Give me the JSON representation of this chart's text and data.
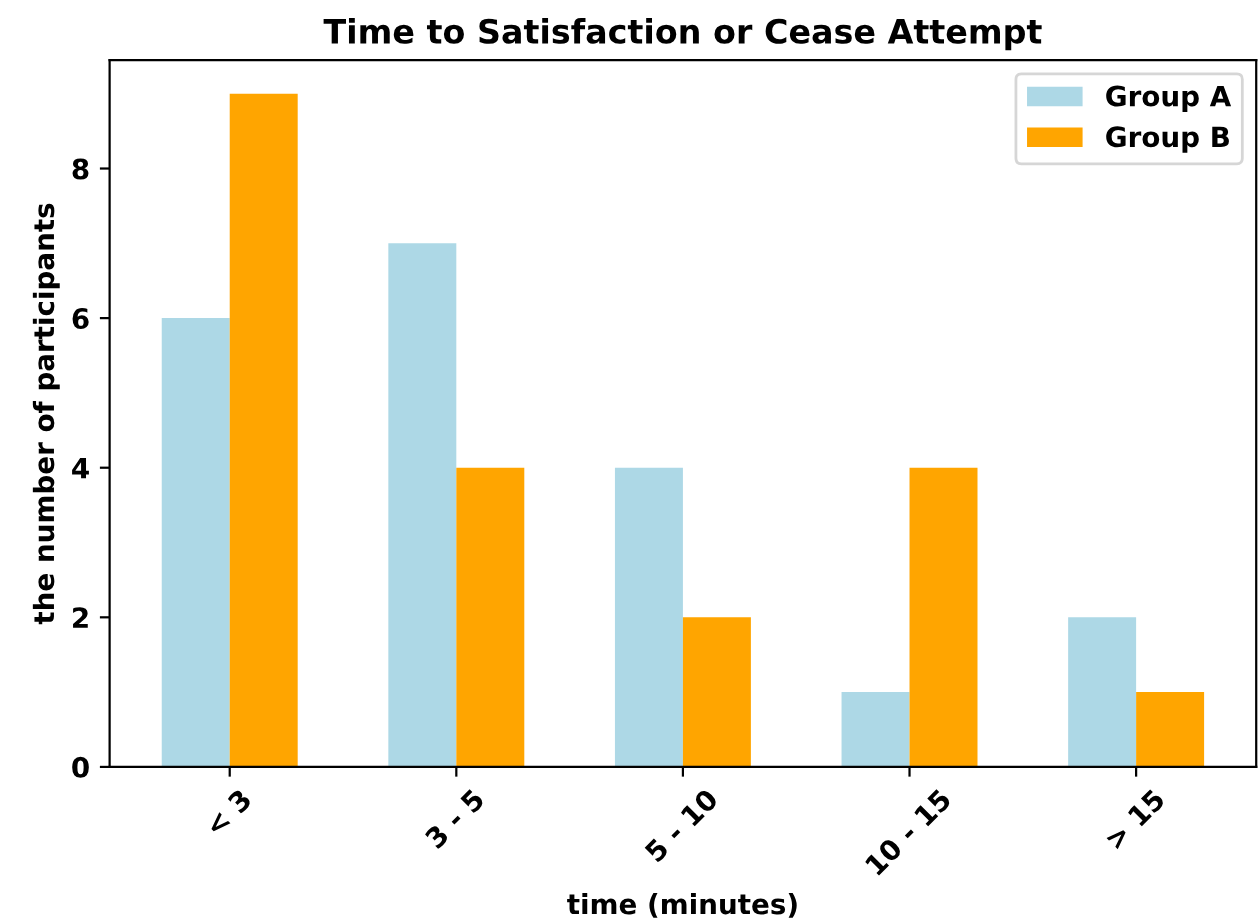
{
  "chart_data": {
    "type": "bar",
    "title": "Time to Satisfaction or Cease Attempt",
    "xlabel": "time (minutes)",
    "ylabel": "the number of participants",
    "categories": [
      "< 3",
      "3 - 5",
      "5 - 10",
      "10 - 15",
      "> 15"
    ],
    "series": [
      {
        "name": "Group A",
        "color": "#add8e6",
        "values": [
          6,
          7,
          4,
          1,
          2
        ]
      },
      {
        "name": "Group B",
        "color": "#ffa500",
        "values": [
          9,
          4,
          2,
          4,
          1
        ]
      }
    ],
    "ylim": [
      0,
      9.45
    ],
    "yticks": [
      0,
      2,
      4,
      6,
      8
    ],
    "legend": "top right",
    "grid": false
  }
}
